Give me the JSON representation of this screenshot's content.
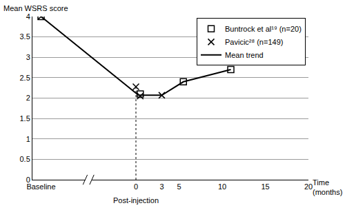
{
  "chart_data": {
    "type": "scatter",
    "y_label": "Mean WSRS score",
    "x_label": "Time (months)",
    "xlim": [
      -12,
      20
    ],
    "xticks": [
      {
        "value": -11,
        "label": "Baseline"
      },
      0,
      3,
      5,
      10,
      15,
      20
    ],
    "ylim": [
      0,
      4
    ],
    "yticks": [
      0,
      0.5,
      1,
      1.5,
      2,
      2.5,
      3,
      3.5,
      4
    ],
    "grid": true,
    "legend": "top right",
    "annotations": [
      {
        "text": "Post-injection",
        "x": 0
      }
    ],
    "series": [
      {
        "name": "Buntrock et al¹⁹ (n=20)",
        "type": "scatter",
        "marker": "square-open",
        "color": "#000000",
        "x": [
          -11,
          0.5,
          5.5,
          11
        ],
        "values": [
          4,
          2.1,
          2.4,
          2.7
        ]
      },
      {
        "name": "Pavicic²⁸ (n=149)",
        "type": "scatter",
        "marker": "x-thin-open",
        "color": "#000000",
        "x": [
          -11,
          0,
          0.5,
          3
        ],
        "values": [
          4,
          2.28,
          2.05,
          2.07
        ]
      },
      {
        "name": "Mean trend",
        "type": "line",
        "line_style": "solid",
        "color": "#000000",
        "x": [
          -11,
          0.3,
          3,
          5.5,
          11
        ],
        "values": [
          4,
          2.07,
          2.07,
          2.4,
          2.7
        ]
      }
    ]
  }
}
